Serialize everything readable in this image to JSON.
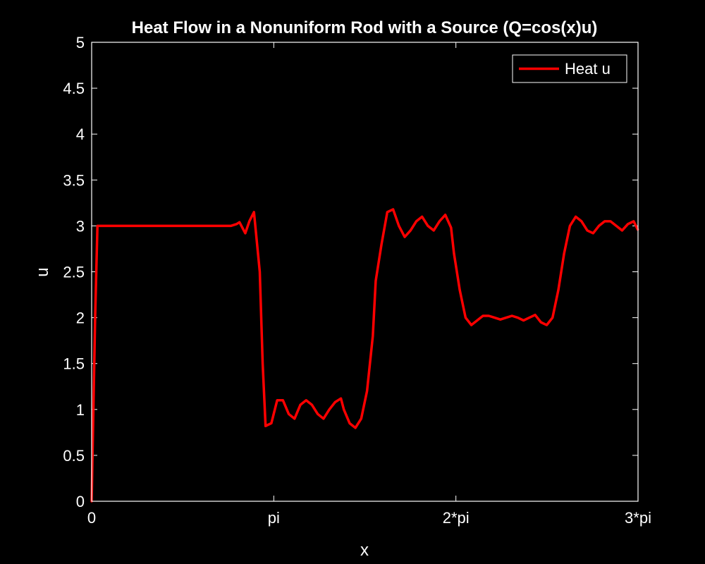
{
  "chart_data": {
    "type": "line",
    "title": "Heat Flow in a Nonuniform Rod with a Source (Q=cos(x)u)",
    "xlabel": "x",
    "ylabel": "u",
    "xlim": [
      0,
      9.42477796
    ],
    "ylim": [
      0,
      5
    ],
    "xticks": [
      {
        "value": 0,
        "label": "0"
      },
      {
        "value": 3.14159265,
        "label": "pi"
      },
      {
        "value": 6.28318531,
        "label": "2*pi"
      },
      {
        "value": 9.42477796,
        "label": "3*pi"
      }
    ],
    "yticks": [
      {
        "value": 0,
        "label": "0"
      },
      {
        "value": 0.5,
        "label": "0.5"
      },
      {
        "value": 1,
        "label": "1"
      },
      {
        "value": 1.5,
        "label": "1.5"
      },
      {
        "value": 2,
        "label": "2"
      },
      {
        "value": 2.5,
        "label": "2.5"
      },
      {
        "value": 3,
        "label": "3"
      },
      {
        "value": 3.5,
        "label": "3.5"
      },
      {
        "value": 4,
        "label": "4"
      },
      {
        "value": 4.5,
        "label": "4.5"
      },
      {
        "value": 5,
        "label": "5"
      }
    ],
    "grid": false,
    "legend": {
      "position": "top-right"
    },
    "series": [
      {
        "name": "Heat u",
        "color": "#ff0000",
        "x": [
          0,
          0.06,
          0.1,
          0.3,
          0.6,
          0.9,
          1.2,
          1.3,
          1.4,
          1.5,
          1.6,
          1.7,
          1.8,
          1.9,
          2.0,
          2.1,
          2.2,
          2.3,
          2.4,
          2.5,
          2.55,
          2.65,
          2.72,
          2.8,
          2.9,
          2.95,
          3.0,
          3.1,
          3.2,
          3.3,
          3.4,
          3.5,
          3.6,
          3.7,
          3.8,
          3.9,
          4.0,
          4.1,
          4.2,
          4.3,
          4.35,
          4.45,
          4.55,
          4.65,
          4.75,
          4.85,
          4.9,
          5.0,
          5.1,
          5.2,
          5.3,
          5.4,
          5.5,
          5.6,
          5.7,
          5.8,
          5.9,
          6.0,
          6.1,
          6.2,
          6.25,
          6.35,
          6.45,
          6.55,
          6.65,
          6.75,
          6.85,
          6.95,
          7.05,
          7.15,
          7.25,
          7.35,
          7.45,
          7.55,
          7.65,
          7.75,
          7.85,
          7.95,
          8.05,
          8.15,
          8.25,
          8.35,
          8.45,
          8.55,
          8.65,
          8.75,
          8.85,
          8.95,
          9.05,
          9.15,
          9.25,
          9.35,
          9.42
        ],
        "y": [
          0,
          2.0,
          3.0,
          3.0,
          3.0,
          3.0,
          3.0,
          3.0,
          3.0,
          3.0,
          3.0,
          3.0,
          3.0,
          3.0,
          3.0,
          3.0,
          3.0,
          3.0,
          3.0,
          3.02,
          3.04,
          2.92,
          3.05,
          3.15,
          2.5,
          1.5,
          0.82,
          0.85,
          1.1,
          1.1,
          0.95,
          0.9,
          1.05,
          1.1,
          1.05,
          0.95,
          0.9,
          1.0,
          1.08,
          1.12,
          1.0,
          0.85,
          0.8,
          0.9,
          1.2,
          1.8,
          2.4,
          2.8,
          3.15,
          3.18,
          3.0,
          2.88,
          2.95,
          3.05,
          3.1,
          3.0,
          2.95,
          3.05,
          3.12,
          2.98,
          2.7,
          2.3,
          2.0,
          1.92,
          1.97,
          2.02,
          2.02,
          2.0,
          1.98,
          2.0,
          2.02,
          2.0,
          1.97,
          2.0,
          2.03,
          1.95,
          1.92,
          2.0,
          2.3,
          2.7,
          3.0,
          3.1,
          3.05,
          2.95,
          2.92,
          3.0,
          3.05,
          3.05,
          3.0,
          2.95,
          3.02,
          3.05,
          2.96
        ]
      }
    ]
  }
}
